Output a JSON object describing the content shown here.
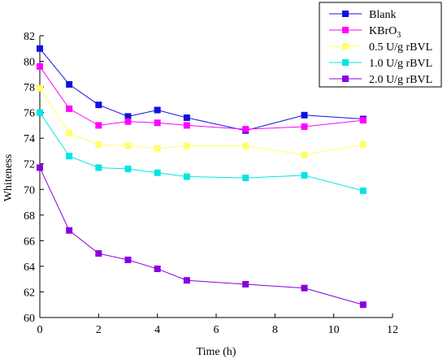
{
  "chart_data": {
    "type": "line",
    "title": "",
    "xlabel": "Time (h)",
    "ylabel": "Whiteness",
    "xlim": [
      0,
      12
    ],
    "ylim": [
      60,
      82
    ],
    "xticks": [
      "0",
      "2",
      "4",
      "6",
      "8",
      "10",
      "12"
    ],
    "yticks": [
      "60",
      "62",
      "64",
      "66",
      "68",
      "70",
      "72",
      "74",
      "76",
      "78",
      "80",
      "82"
    ],
    "grid": false,
    "legend_position": "top-right",
    "x": [
      0,
      1,
      2,
      3,
      4,
      5,
      7,
      9,
      11
    ],
    "series": [
      {
        "name": "Blank",
        "label_main": "Blank",
        "label_sub": "",
        "color": "#1010e0",
        "values": [
          81.0,
          78.2,
          76.6,
          75.7,
          76.2,
          75.6,
          74.6,
          75.8,
          75.5
        ]
      },
      {
        "name": "KBrO3",
        "label_main": "KBrO",
        "label_sub": "3",
        "color": "#ff00ff",
        "values": [
          79.6,
          76.3,
          75.0,
          75.3,
          75.2,
          75.0,
          74.7,
          74.9,
          75.4
        ]
      },
      {
        "name": "0.5 U/g rBVL",
        "label_main": "0.5 U/g rBVL",
        "label_sub": "",
        "color": "#ffff66",
        "values": [
          77.9,
          74.4,
          73.5,
          73.4,
          73.2,
          73.4,
          73.4,
          72.7,
          73.5
        ]
      },
      {
        "name": "1.0 U/g rBVL",
        "label_main": "1.0 U/g rBVL",
        "label_sub": "",
        "color": "#00e5e5",
        "values": [
          76.0,
          72.6,
          71.7,
          71.6,
          71.3,
          71.0,
          70.9,
          71.1,
          69.9
        ]
      },
      {
        "name": "2.0 U/g rBVL",
        "label_main": "2.0 U/g rBVL",
        "label_sub": "",
        "color": "#8800e0",
        "values": [
          71.7,
          66.8,
          65.0,
          64.5,
          63.8,
          62.9,
          62.6,
          62.3,
          61.0
        ]
      }
    ]
  }
}
